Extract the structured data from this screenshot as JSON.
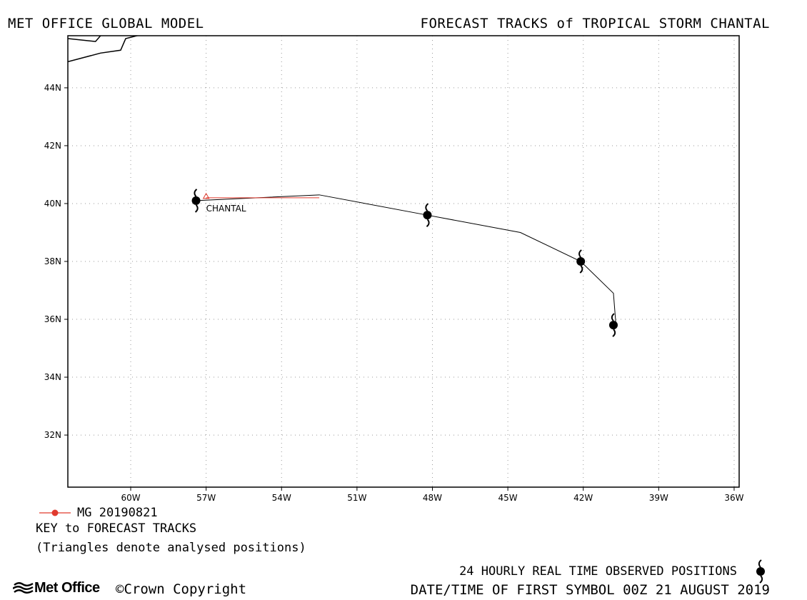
{
  "header": {
    "left_title": "MET OFFICE GLOBAL MODEL",
    "right_title": "FORECAST TRACKS of TROPICAL STORM CHANTAL"
  },
  "map": {
    "lon_range": [
      -62.5,
      -35.8
    ],
    "lat_range": [
      30.2,
      45.8
    ],
    "x_ticks": [
      {
        "value": -60,
        "label": "60W"
      },
      {
        "value": -57,
        "label": "57W"
      },
      {
        "value": -54,
        "label": "54W"
      },
      {
        "value": -51,
        "label": "51W"
      },
      {
        "value": -48,
        "label": "48W"
      },
      {
        "value": -45,
        "label": "45W"
      },
      {
        "value": -42,
        "label": "42W"
      },
      {
        "value": -39,
        "label": "39W"
      },
      {
        "value": -36,
        "label": "36W"
      }
    ],
    "y_ticks": [
      {
        "value": 44,
        "label": "44N"
      },
      {
        "value": 42,
        "label": "42N"
      },
      {
        "value": 40,
        "label": "40N"
      },
      {
        "value": 38,
        "label": "38N"
      },
      {
        "value": 36,
        "label": "36N"
      },
      {
        "value": 34,
        "label": "34N"
      },
      {
        "value": 32,
        "label": "32N"
      }
    ],
    "grid": "dotted",
    "coastline": [
      [
        -62.5,
        44.9
      ],
      [
        -61.2,
        45.2
      ],
      [
        -60.4,
        45.3
      ],
      [
        -60.2,
        45.7
      ],
      [
        -59.3,
        45.9
      ]
    ],
    "coastline2": [
      [
        -62.5,
        45.7
      ],
      [
        -61.4,
        45.6
      ],
      [
        -61.2,
        45.8
      ]
    ],
    "storm_label": "CHANTAL",
    "colors": {
      "forecast_track": "#e03a2e",
      "observed_track": "#000000",
      "frame": "#000000",
      "grid": "#9a9a9a"
    }
  },
  "chart_data": {
    "type": "map-track",
    "forecast_track": {
      "name": "MG 20190821",
      "points": [
        {
          "lon": -57.0,
          "lat": 40.2
        },
        {
          "lon": -52.5,
          "lat": 40.2
        }
      ],
      "analysed_position": {
        "lon": -57.0,
        "lat": 40.25
      }
    },
    "observed_track": {
      "path": [
        {
          "lon": -57.4,
          "lat": 40.1
        },
        {
          "lon": -52.5,
          "lat": 40.3
        },
        {
          "lon": -48.2,
          "lat": 39.6
        },
        {
          "lon": -44.5,
          "lat": 39.0
        },
        {
          "lon": -42.1,
          "lat": 38.0
        },
        {
          "lon": -40.8,
          "lat": 36.9
        },
        {
          "lon": -40.7,
          "lat": 35.8
        }
      ],
      "symbols_24h": [
        {
          "lon": -57.4,
          "lat": 40.1
        },
        {
          "lon": -48.2,
          "lat": 39.6
        },
        {
          "lon": -42.1,
          "lat": 38.0
        },
        {
          "lon": -40.8,
          "lat": 35.8
        }
      ]
    }
  },
  "key": {
    "model_label": "MG 20190821",
    "title": "KEY to FORECAST TRACKS",
    "note": "(Triangles denote analysed positions)"
  },
  "footer": {
    "observed_label": "24 HOURLY REAL TIME OBSERVED POSITIONS",
    "date_line": "DATE/TIME OF FIRST SYMBOL 00Z 21 AUGUST 2019",
    "brand": "Met Office",
    "copyright": "Crown Copyright",
    "copyright_symbol": "©"
  },
  "icons": {
    "storm_symbol": "tropical-storm-icon",
    "brand_logo": "met-office-logo-icon"
  }
}
